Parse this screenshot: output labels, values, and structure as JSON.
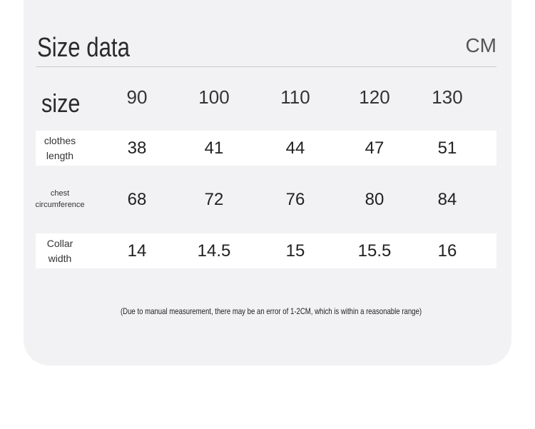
{
  "header": {
    "title": "Size data",
    "unit": "CM"
  },
  "table": {
    "corner": "size",
    "columns": [
      90,
      100,
      110,
      120,
      130
    ],
    "rows": [
      {
        "label": "clothes length",
        "values": [
          38,
          41,
          44,
          47,
          51
        ]
      },
      {
        "label": "chest circumference",
        "values": [
          68,
          72,
          76,
          80,
          84
        ]
      },
      {
        "label": "Collar width",
        "values": [
          14,
          14.5,
          15,
          15.5,
          16
        ]
      }
    ]
  },
  "note": "(Due to manual measurement, there may be an error of 1-2CM, which is within a reasonable range)"
}
